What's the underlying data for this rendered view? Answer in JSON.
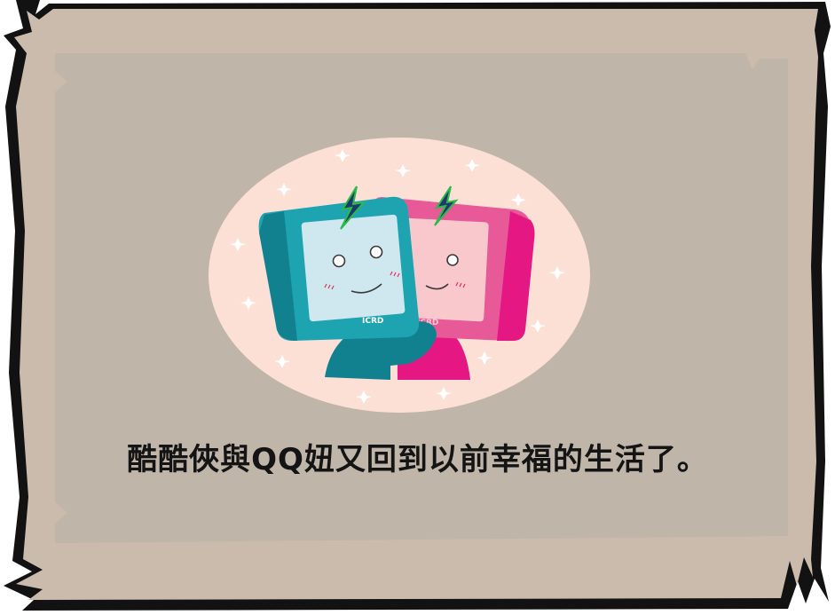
{
  "caption": "酷酷俠與QQ妞又回到以前幸福的生活了。",
  "characters": {
    "left": {
      "badge": "ICRD"
    },
    "right": {
      "badge": "ICRD"
    }
  },
  "colors": {
    "frame_outer": "#cbbbad",
    "frame_border": "#121212",
    "panel": "#c0b5a9",
    "oval": "#fce0d6",
    "teal_body": "#12818f",
    "teal_face": "#cfe7ee",
    "pink_body": "#e41783",
    "pink_face": "#f8c8cc",
    "caption": "#141414"
  }
}
